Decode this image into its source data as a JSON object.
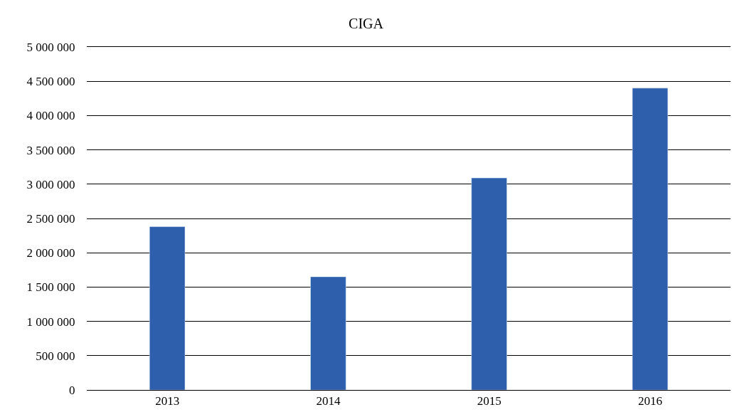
{
  "chart_data": {
    "type": "bar",
    "title": "CIGA",
    "categories": [
      "2013",
      "2014",
      "2015",
      "2016"
    ],
    "values": [
      2380000,
      1650000,
      3090000,
      4400000
    ],
    "color": "#2e5fac",
    "ylim": [
      0,
      5000000
    ],
    "yticks": [
      {
        "value": 0,
        "label": "0"
      },
      {
        "value": 500000,
        "label": "500 000"
      },
      {
        "value": 1000000,
        "label": "1 000 000"
      },
      {
        "value": 1500000,
        "label": "1 500 000"
      },
      {
        "value": 2000000,
        "label": "2 000 000"
      },
      {
        "value": 2500000,
        "label": "2 500 000"
      },
      {
        "value": 3000000,
        "label": "3 000 000"
      },
      {
        "value": 3500000,
        "label": "3 500 000"
      },
      {
        "value": 4000000,
        "label": "4 000 000"
      },
      {
        "value": 4500000,
        "label": "4 500 000"
      },
      {
        "value": 5000000,
        "label": "5 000 000"
      }
    ],
    "grid": "y"
  }
}
